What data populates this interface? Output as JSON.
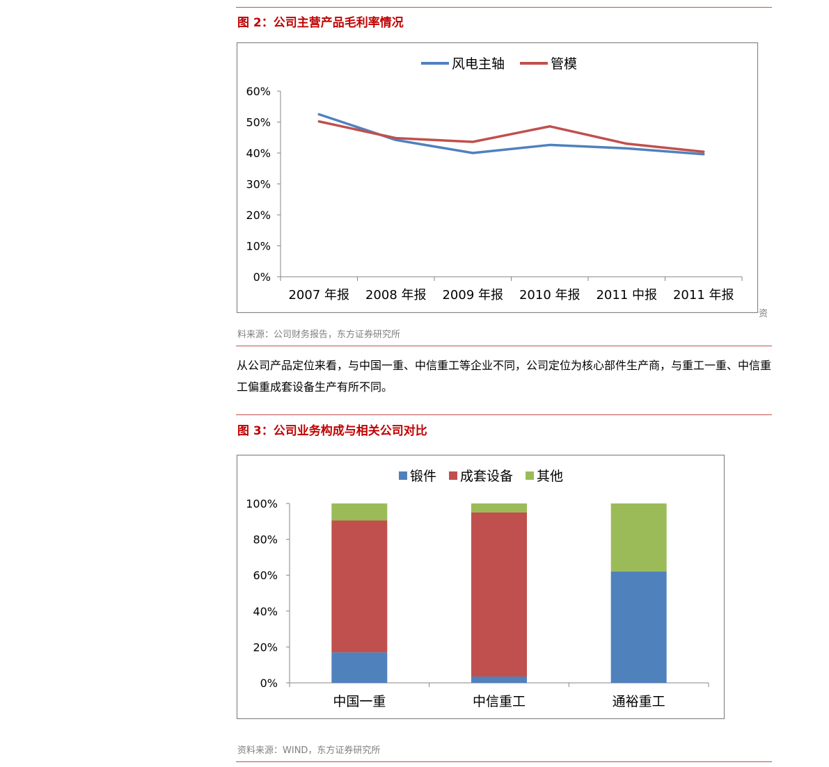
{
  "figure2": {
    "title": "图 2：公司主营产品毛利率情况",
    "source": "料来源：公司财务报告，东方证券研究所",
    "stray_char": "资"
  },
  "paragraph": "从公司产品定位来看，与中国一重、中信重工等企业不同，公司定位为核心部件生产商，与重工一重、中信重工偏重成套设备生产有所不同。",
  "figure3": {
    "title": "图 3：公司业务构成与相关公司对比",
    "source": "资料来源：WIND，东方证券研究所"
  },
  "chart_data": [
    {
      "type": "line",
      "title": "",
      "xlabel": "",
      "ylabel": "",
      "categories": [
        "2007 年报",
        "2008 年报",
        "2009 年报",
        "2010 年报",
        "2011 中报",
        "2011 年报"
      ],
      "series": [
        {
          "name": "风电主轴",
          "color": "#4f81bd",
          "values": [
            52.5,
            44.2,
            40.0,
            42.6,
            41.5,
            39.6
          ]
        },
        {
          "name": "管模",
          "color": "#c0504d",
          "values": [
            50.2,
            44.8,
            43.6,
            48.6,
            43.0,
            40.4
          ]
        }
      ],
      "ylim": [
        0,
        60
      ],
      "yticks": [
        "0%",
        "10%",
        "20%",
        "30%",
        "40%",
        "50%",
        "60%"
      ],
      "grid": false,
      "legend": "top"
    },
    {
      "type": "bar",
      "stacked": true,
      "title": "",
      "xlabel": "",
      "ylabel": "",
      "categories": [
        "中国一重",
        "中信重工",
        "通裕重工"
      ],
      "series": [
        {
          "name": "锻件",
          "color": "#4f81bd",
          "values": [
            17,
            3.5,
            62
          ]
        },
        {
          "name": "成套设备",
          "color": "#c0504d",
          "values": [
            73.5,
            91.5,
            0
          ]
        },
        {
          "name": "其他",
          "color": "#9bbb59",
          "values": [
            9.5,
            5,
            38
          ]
        }
      ],
      "ylim": [
        0,
        100
      ],
      "yticks": [
        "0%",
        "20%",
        "40%",
        "60%",
        "80%",
        "100%"
      ],
      "grid": false,
      "legend": "top"
    }
  ]
}
